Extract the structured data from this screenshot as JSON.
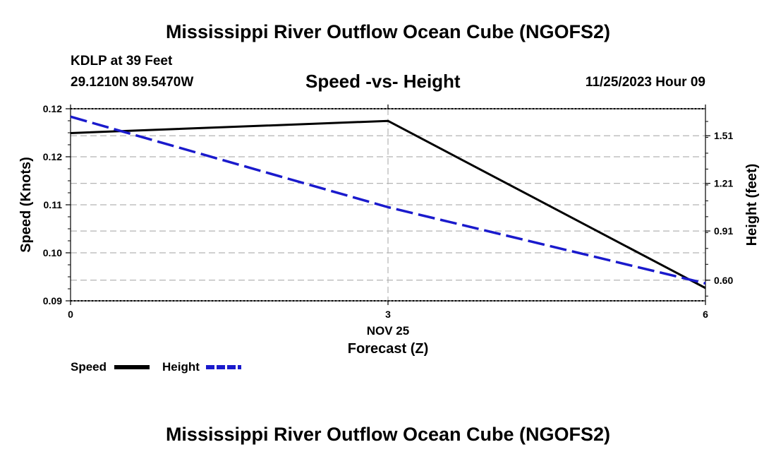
{
  "header": {
    "title": "Mississippi River Outflow Ocean Cube (NGOFS2)",
    "station": "KDLP at 39 Feet",
    "coords": "29.1210N  89.5470W",
    "subtitle": "Speed -vs- Height",
    "date": "11/25/2023 Hour 09"
  },
  "footer": {
    "title": "Mississippi River Outflow Ocean Cube (NGOFS2)"
  },
  "legend": {
    "speed_label": "Speed",
    "height_label": "Height"
  },
  "colors": {
    "speed": "#000000",
    "height": "#1a1acc",
    "grid": "#b4b4b4"
  },
  "chart_data": {
    "type": "line",
    "title": "Speed -vs- Height",
    "xlabel": "Forecast (Z)",
    "ylabel": "Speed (Knots)",
    "y2label": "Height (feet)",
    "x": [
      0,
      3,
      6
    ],
    "xlim": [
      0,
      6
    ],
    "xticks": [
      "0",
      "3",
      "6"
    ],
    "date_label": "NOV 25",
    "ylim": [
      0.09,
      0.12
    ],
    "yticks": [
      "0.09",
      "0.10",
      "0.11",
      "0.12",
      "0.12"
    ],
    "y2lim": [
      0.47,
      1.68
    ],
    "y2ticks": [
      "0.60",
      "0.91",
      "1.21",
      "1.51"
    ],
    "series": [
      {
        "name": "Speed",
        "axis": "left",
        "style": "solid",
        "values": [
          0.1162,
          0.1181,
          0.092
        ]
      },
      {
        "name": "Height",
        "axis": "right",
        "style": "dashed",
        "values": [
          1.63,
          1.06,
          0.58
        ]
      }
    ],
    "grid": true
  }
}
